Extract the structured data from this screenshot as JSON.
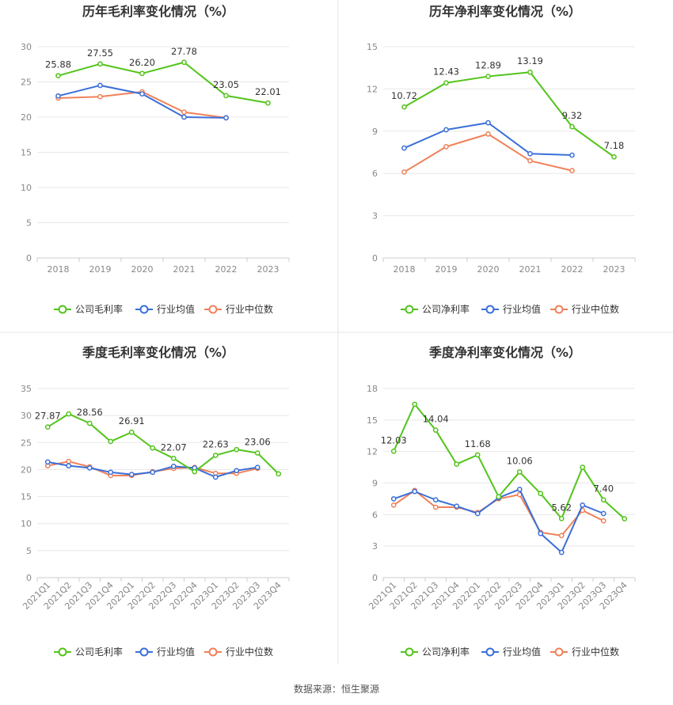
{
  "source": "数据来源：恒生聚源",
  "colors": {
    "company": "#52c41a",
    "industry_avg": "#3a6fd8",
    "industry_median": "#f08159",
    "grid": "#e8e8e8",
    "axis": "#cccccc",
    "divider": "#e5e5e5"
  },
  "chart_data": [
    {
      "type": "line",
      "title": "历年毛利率变化情况（%）",
      "categories": [
        "2018",
        "2019",
        "2020",
        "2021",
        "2022",
        "2023"
      ],
      "ylim": [
        0,
        30
      ],
      "yticks": [
        0,
        5,
        10,
        15,
        20,
        25,
        30
      ],
      "grid": true,
      "legend_position": "bottom",
      "series": [
        {
          "name": "公司毛利率",
          "key": "company",
          "values": [
            25.88,
            27.55,
            26.2,
            27.78,
            23.05,
            22.01
          ],
          "labels": [
            "25.88",
            "27.55",
            "26.20",
            "27.78",
            "23.05",
            "22.01"
          ]
        },
        {
          "name": "行业均值",
          "key": "industry_avg",
          "values": [
            23.0,
            24.5,
            23.3,
            20.0,
            19.9,
            null
          ]
        },
        {
          "name": "行业中位数",
          "key": "industry_median",
          "values": [
            22.7,
            22.9,
            23.6,
            20.7,
            19.9,
            null
          ]
        }
      ]
    },
    {
      "type": "line",
      "title": "历年净利率变化情况（%）",
      "categories": [
        "2018",
        "2019",
        "2020",
        "2021",
        "2022",
        "2023"
      ],
      "ylim": [
        0,
        15
      ],
      "yticks": [
        0,
        3,
        6,
        9,
        12,
        15
      ],
      "grid": true,
      "legend_position": "bottom",
      "series": [
        {
          "name": "公司净利率",
          "key": "company",
          "values": [
            10.72,
            12.43,
            12.89,
            13.19,
            9.32,
            7.18
          ],
          "labels": [
            "10.72",
            "12.43",
            "12.89",
            "13.19",
            "9.32",
            "7.18"
          ]
        },
        {
          "name": "行业均值",
          "key": "industry_avg",
          "values": [
            7.8,
            9.1,
            9.6,
            7.4,
            7.3,
            null
          ]
        },
        {
          "name": "行业中位数",
          "key": "industry_median",
          "values": [
            6.1,
            7.9,
            8.8,
            6.9,
            6.2,
            null
          ]
        }
      ]
    },
    {
      "type": "line",
      "title": "季度毛利率变化情况（%）",
      "categories": [
        "2021Q1",
        "2021Q2",
        "2021Q3",
        "2021Q4",
        "2022Q1",
        "2022Q2",
        "2022Q3",
        "2022Q4",
        "2023Q1",
        "2023Q2",
        "2023Q3",
        "2023Q4"
      ],
      "ylim": [
        0,
        35
      ],
      "yticks": [
        0,
        5,
        10,
        15,
        20,
        25,
        30,
        35
      ],
      "grid": true,
      "legend_position": "bottom",
      "series": [
        {
          "name": "公司毛利率",
          "key": "company",
          "values": [
            27.87,
            30.3,
            28.56,
            25.2,
            26.91,
            24.0,
            22.07,
            19.6,
            22.63,
            23.7,
            23.06,
            19.2
          ],
          "labels": [
            "27.87",
            "",
            "28.56",
            "",
            "26.91",
            "",
            "22.07",
            "",
            "22.63",
            "",
            "23.06",
            ""
          ]
        },
        {
          "name": "行业均值",
          "key": "industry_avg",
          "values": [
            21.4,
            20.7,
            20.3,
            19.5,
            19.1,
            19.5,
            20.6,
            20.3,
            18.6,
            19.8,
            20.4,
            null
          ]
        },
        {
          "name": "行业中位数",
          "key": "industry_median",
          "values": [
            20.7,
            21.5,
            20.5,
            18.9,
            18.9,
            19.6,
            20.2,
            20.4,
            19.3,
            19.3,
            20.2,
            null
          ]
        }
      ]
    },
    {
      "type": "line",
      "title": "季度净利率变化情况（%）",
      "categories": [
        "2021Q1",
        "2021Q2",
        "2021Q3",
        "2021Q4",
        "2022Q1",
        "2022Q2",
        "2022Q3",
        "2022Q4",
        "2023Q1",
        "2023Q2",
        "2023Q3",
        "2023Q4"
      ],
      "ylim": [
        0,
        18
      ],
      "yticks": [
        0,
        3,
        6,
        9,
        12,
        15,
        18
      ],
      "grid": true,
      "legend_position": "bottom",
      "series": [
        {
          "name": "公司净利率",
          "key": "company",
          "values": [
            12.03,
            16.5,
            14.04,
            10.8,
            11.68,
            7.7,
            10.06,
            8.0,
            5.62,
            10.5,
            7.4,
            5.6
          ],
          "labels": [
            "12.03",
            "",
            "14.04",
            "",
            "11.68",
            "",
            "10.06",
            "",
            "5.62",
            "",
            "7.40",
            ""
          ]
        },
        {
          "name": "行业均值",
          "key": "industry_avg",
          "values": [
            7.5,
            8.2,
            7.4,
            6.8,
            6.1,
            7.6,
            8.4,
            4.2,
            2.4,
            6.9,
            6.1,
            null
          ]
        },
        {
          "name": "行业中位数",
          "key": "industry_median",
          "values": [
            6.9,
            8.3,
            6.7,
            6.7,
            6.2,
            7.5,
            7.9,
            4.3,
            4.0,
            6.4,
            5.4,
            null
          ]
        }
      ]
    }
  ]
}
